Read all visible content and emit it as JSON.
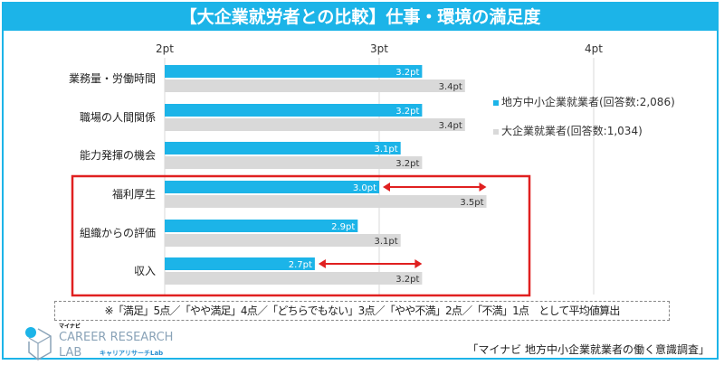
{
  "title": "【大企業就労者との比較】仕事・環境の満足度",
  "chart_data": {
    "type": "bar",
    "orientation": "horizontal",
    "title": "【大企業就労者との比較】仕事・環境の満足度",
    "categories": [
      "業務量・労働時間",
      "職場の人間関係",
      "能力発揮の機会",
      "福利厚生",
      "組織からの評価",
      "収入"
    ],
    "series": [
      {
        "name": "地方中小企業就業者(回答数:2,086)",
        "values": [
          3.2,
          3.2,
          3.1,
          3.0,
          2.9,
          2.7
        ],
        "labels": [
          "3.2pt",
          "3.2pt",
          "3.1pt",
          "3.0pt",
          "2.9pt",
          "2.7pt"
        ],
        "color": "#1cb4e8"
      },
      {
        "name": "大企業就業者(回答数:1,034)",
        "values": [
          3.4,
          3.4,
          3.2,
          3.5,
          3.1,
          3.2
        ],
        "labels": [
          "3.4pt",
          "3.4pt",
          "3.2pt",
          "3.5pt",
          "3.1pt",
          "3.2pt"
        ],
        "color": "#d9d9d9"
      }
    ],
    "xlim": [
      2,
      4
    ],
    "ticks": [
      "2pt",
      "3pt",
      "4pt"
    ],
    "tick_values": [
      2,
      3,
      4
    ],
    "grid": true,
    "legend": "right",
    "highlight_categories": [
      "福利厚生",
      "組織からの評価",
      "収入"
    ],
    "highlight_color": "#e02020",
    "gap_arrows": [
      "福利厚生",
      "収入"
    ]
  },
  "note": "※「満足」5点／「やや満足」4点／「どちらでもない」3点／「やや不満」2点／「不満」1点　として平均値算出",
  "source": "「マイナビ 地方中小企業就業者の働く意識調査」",
  "logo": {
    "small": "マイナビ",
    "big": "CAREER RESEARCH",
    "lab": "LAB",
    "kana": "キャリアリサーチLab"
  }
}
